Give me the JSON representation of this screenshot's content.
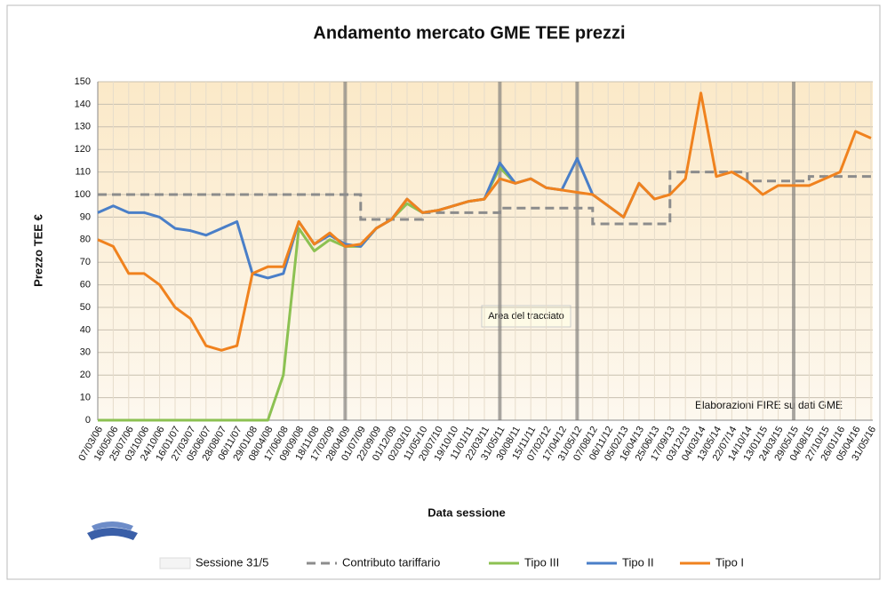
{
  "chart_data": {
    "type": "line",
    "title": "Andamento mercato GME TEE prezzi",
    "y_label": "Prezzo TEE €",
    "x_label": "Data sessione",
    "annotations": [
      "Area del tracciato",
      "Elaborazioni FIRE su dati GME"
    ],
    "categories": [
      "07/03/06",
      "16/05/06",
      "25/07/06",
      "03/10/06",
      "24/10/06",
      "16/01/07",
      "27/03/07",
      "05/06/07",
      "28/08/07",
      "06/11/07",
      "29/01/08",
      "08/04/08",
      "17/06/08",
      "09/09/08",
      "18/11/08",
      "17/02/09",
      "28/04/09",
      "01/07/09",
      "22/09/09",
      "01/12/09",
      "02/03/10",
      "11/05/10",
      "20/07/10",
      "19/10/10",
      "11/01/11",
      "22/03/11",
      "31/05/11",
      "30/08/11",
      "15/11/11",
      "07/02/12",
      "17/04/12",
      "31/05/12",
      "07/08/12",
      "06/11/12",
      "05/02/13",
      "16/04/13",
      "25/06/13",
      "17/09/13",
      "03/12/13",
      "04/03/14",
      "13/05/14",
      "22/07/14",
      "14/10/14",
      "13/01/15",
      "24/03/15",
      "29/05/15",
      "04/08/15",
      "27/10/15",
      "26/01/16",
      "05/04/16",
      "31/05/16"
    ],
    "ylim": [
      0,
      150
    ],
    "yticks": [
      0,
      10,
      20,
      30,
      40,
      50,
      60,
      70,
      80,
      90,
      100,
      110,
      120,
      130,
      140,
      150
    ],
    "grid": true,
    "series": [
      {
        "name": "Sessione 31/5",
        "style": "bar",
        "color": "#f4f4f4",
        "values": [
          null,
          null,
          null,
          null,
          null,
          null,
          null,
          null,
          null,
          null,
          null,
          null,
          null,
          null,
          null,
          null,
          150,
          null,
          null,
          null,
          null,
          null,
          null,
          null,
          null,
          null,
          150,
          null,
          null,
          null,
          null,
          150,
          null,
          null,
          null,
          null,
          null,
          null,
          null,
          null,
          null,
          null,
          null,
          null,
          null,
          150,
          null,
          null,
          null,
          null,
          null
        ]
      },
      {
        "name": "Contributo tariffario",
        "style": "step-dashed",
        "color": "#8c8c8c",
        "values": [
          100,
          100,
          100,
          100,
          100,
          100,
          100,
          100,
          100,
          100,
          100,
          100,
          100,
          100,
          100,
          100,
          100,
          89,
          89,
          89,
          89,
          92,
          92,
          92,
          92,
          92,
          94,
          94,
          94,
          94,
          94,
          94,
          87,
          87,
          87,
          87,
          87,
          110,
          110,
          110,
          110,
          110,
          106,
          106,
          106,
          106,
          108,
          108,
          108,
          108,
          108
        ]
      },
      {
        "name": "Tipo III",
        "style": "line",
        "color": "#8cc152",
        "values": [
          0,
          0,
          0,
          0,
          0,
          0,
          0,
          0,
          0,
          0,
          0,
          0,
          20,
          85,
          75,
          80,
          77,
          77,
          85,
          89,
          96,
          92,
          93,
          95,
          97,
          98,
          112,
          105,
          null,
          null,
          null,
          null,
          null,
          null,
          null,
          null,
          null,
          null,
          null,
          null,
          null,
          null,
          null,
          null,
          null,
          null,
          null,
          null,
          null,
          null,
          null
        ]
      },
      {
        "name": "Tipo II",
        "style": "line",
        "color": "#4a7fc8",
        "values": [
          92,
          95,
          92,
          92,
          90,
          85,
          84,
          82,
          85,
          88,
          65,
          63,
          65,
          88,
          78,
          82,
          78,
          77,
          85,
          89,
          98,
          92,
          93,
          95,
          97,
          98,
          114,
          105,
          107,
          103,
          102,
          116,
          100,
          95,
          90,
          105,
          98,
          null,
          null,
          null,
          null,
          null,
          null,
          null,
          null,
          null,
          null,
          null,
          null,
          null,
          null
        ]
      },
      {
        "name": "Tipo I",
        "style": "line",
        "color": "#f0821e",
        "values": [
          80,
          77,
          65,
          65,
          60,
          50,
          45,
          33,
          31,
          33,
          65,
          68,
          68,
          88,
          78,
          83,
          77,
          78,
          85,
          89,
          98,
          92,
          93,
          95,
          97,
          98,
          107,
          105,
          107,
          103,
          102,
          101,
          100,
          95,
          90,
          105,
          98,
          100,
          107,
          145,
          108,
          110,
          106,
          100,
          104,
          104,
          104,
          107,
          110,
          128,
          125
        ]
      }
    ]
  }
}
